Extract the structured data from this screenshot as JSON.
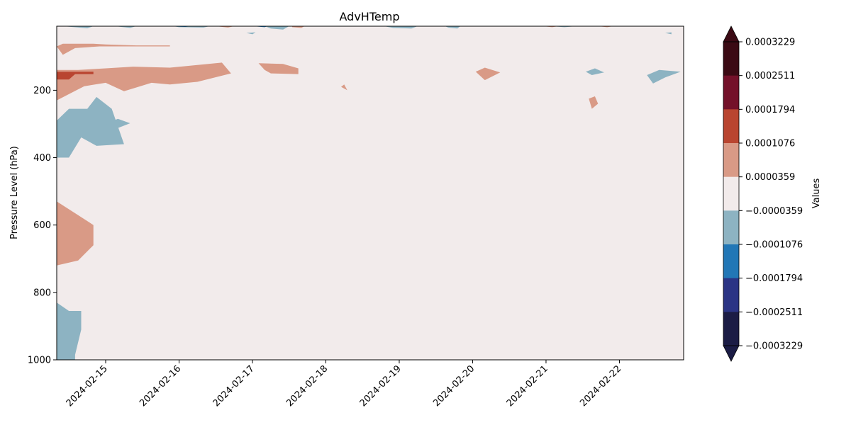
{
  "chart_data": {
    "type": "heatmap",
    "title": "AdvHTemp",
    "ylabel": "Pressure Level (hPa)",
    "xlabel": "",
    "colorbar_label": "Values",
    "x_range": [
      "2024-02-14 08:00",
      "2024-02-22 21:00"
    ],
    "y_range": [
      1000,
      10
    ],
    "y_inverted": true,
    "x_ticks": [
      "2024-02-15",
      "2024-02-16",
      "2024-02-17",
      "2024-02-18",
      "2024-02-19",
      "2024-02-20",
      "2024-02-21",
      "2024-02-22"
    ],
    "y_ticks": [
      200,
      400,
      600,
      800,
      1000
    ],
    "colorbar_ticks": [
      "0.0003229",
      "0.0002511",
      "0.0001794",
      "0.0001076",
      "0.0000359",
      "−0.0000359",
      "−0.0001076",
      "−0.0001794",
      "−0.0002511",
      "−0.0003229"
    ],
    "levels": [
      {
        "range": [
          0.0002511,
          0.0003229
        ],
        "color": "#3b0a14"
      },
      {
        "range": [
          0.0001794,
          0.0002511
        ],
        "color": "#74112a"
      },
      {
        "range": [
          0.0001076,
          0.0001794
        ],
        "color": "#b94530"
      },
      {
        "range": [
          3.59e-05,
          0.0001076
        ],
        "color": "#d99a86"
      },
      {
        "range": [
          -3.59e-05,
          3.59e-05
        ],
        "color": "#f2ebeb"
      },
      {
        "range": [
          -0.0001076,
          -3.59e-05
        ],
        "color": "#8db3c2"
      },
      {
        "range": [
          -0.0001794,
          -0.0001076
        ],
        "color": "#2277b6"
      },
      {
        "range": [
          -0.0002511,
          -0.0001794
        ],
        "color": "#2b3485"
      },
      {
        "range": [
          -0.0003229,
          -0.0002511
        ],
        "color": "#1b1c45"
      }
    ],
    "extend": "both",
    "background_color": "#f2ebeb",
    "regions": [
      {
        "name": "warm-upper-band",
        "color": "#d99a86",
        "points": [
          [
            "2024-02-14 08:00",
            230
          ],
          [
            "2024-02-14 08:00",
            140
          ],
          [
            "2024-02-14 15:00",
            140
          ],
          [
            "2024-02-15 00:00",
            135
          ],
          [
            "2024-02-15 09:00",
            130
          ],
          [
            "2024-02-15 21:00",
            133
          ],
          [
            "2024-02-16 06:00",
            125
          ],
          [
            "2024-02-16 14:00",
            118
          ],
          [
            "2024-02-16 17:00",
            150
          ],
          [
            "2024-02-16 06:00",
            175
          ],
          [
            "2024-02-15 21:00",
            183
          ],
          [
            "2024-02-15 15:00",
            178
          ],
          [
            "2024-02-15 06:00",
            203
          ],
          [
            "2024-02-15 00:00",
            178
          ],
          [
            "2024-02-14 17:00",
            188
          ]
        ]
      },
      {
        "name": "warm-core",
        "color": "#b94530",
        "points": [
          [
            "2024-02-14 08:00",
            168
          ],
          [
            "2024-02-14 08:00",
            145
          ],
          [
            "2024-02-14 20:00",
            145
          ],
          [
            "2024-02-14 20:00",
            152
          ],
          [
            "2024-02-14 14:00",
            152
          ],
          [
            "2024-02-14 12:00",
            168
          ]
        ]
      },
      {
        "name": "warm-strip-70",
        "color": "#d99a86",
        "points": [
          [
            "2024-02-14 08:00",
            70
          ],
          [
            "2024-02-14 10:00",
            62
          ],
          [
            "2024-02-14 20:00",
            62
          ],
          [
            "2024-02-15 00:00",
            64
          ],
          [
            "2024-02-15 10:00",
            67
          ],
          [
            "2024-02-15 21:00",
            67
          ],
          [
            "2024-02-15 21:00",
            70
          ],
          [
            "2024-02-14 22:00",
            70
          ],
          [
            "2024-02-14 14:00",
            75
          ],
          [
            "2024-02-14 10:00",
            95
          ]
        ]
      },
      {
        "name": "warm-blob-02-17",
        "color": "#d99a86",
        "points": [
          [
            "2024-02-17 02:00",
            120
          ],
          [
            "2024-02-17 10:00",
            122
          ],
          [
            "2024-02-17 15:00",
            135
          ],
          [
            "2024-02-17 15:00",
            152
          ],
          [
            "2024-02-17 06:00",
            150
          ],
          [
            "2024-02-17 04:00",
            140
          ]
        ]
      },
      {
        "name": "cold-upper-left",
        "color": "#8db3c2",
        "points": [
          [
            "2024-02-14 08:00",
            400
          ],
          [
            "2024-02-14 08:00",
            290
          ],
          [
            "2024-02-14 12:00",
            255
          ],
          [
            "2024-02-14 18:00",
            255
          ],
          [
            "2024-02-14 21:00",
            220
          ],
          [
            "2024-02-15 02:00",
            255
          ],
          [
            "2024-02-15 06:00",
            360
          ],
          [
            "2024-02-14 21:00",
            365
          ],
          [
            "2024-02-14 16:00",
            340
          ],
          [
            "2024-02-14 12:00",
            400
          ]
        ]
      },
      {
        "name": "cold-small-02-15",
        "color": "#8db3c2",
        "points": [
          [
            "2024-02-15 00:00",
            300
          ],
          [
            "2024-02-15 04:00",
            285
          ],
          [
            "2024-02-15 08:00",
            298
          ],
          [
            "2024-02-15 04:00",
            312
          ]
        ]
      },
      {
        "name": "warm-mid-left",
        "color": "#d99a86",
        "points": [
          [
            "2024-02-14 08:00",
            720
          ],
          [
            "2024-02-14 08:00",
            530
          ],
          [
            "2024-02-14 14:00",
            565
          ],
          [
            "2024-02-14 20:00",
            600
          ],
          [
            "2024-02-14 20:00",
            660
          ],
          [
            "2024-02-14 15:00",
            705
          ]
        ]
      },
      {
        "name": "cold-bottom-left",
        "color": "#8db3c2",
        "points": [
          [
            "2024-02-14 08:00",
            1000
          ],
          [
            "2024-02-14 08:00",
            830
          ],
          [
            "2024-02-14 12:00",
            855
          ],
          [
            "2024-02-14 16:00",
            855
          ],
          [
            "2024-02-14 16:00",
            910
          ],
          [
            "2024-02-14 14:00",
            985
          ],
          [
            "2024-02-14 14:00",
            1000
          ]
        ]
      },
      {
        "name": "warm-blob-02-20",
        "color": "#d99a86",
        "points": [
          [
            "2024-02-20 01:00",
            145
          ],
          [
            "2024-02-20 04:00",
            133
          ],
          [
            "2024-02-20 09:00",
            147
          ],
          [
            "2024-02-20 04:00",
            170
          ]
        ]
      },
      {
        "name": "cold-blob-02-21",
        "color": "#8db3c2",
        "points": [
          [
            "2024-02-21 13:00",
            145
          ],
          [
            "2024-02-21 16:00",
            135
          ],
          [
            "2024-02-21 19:00",
            147
          ],
          [
            "2024-02-21 15:00",
            155
          ]
        ]
      },
      {
        "name": "warm-streak-02-21",
        "color": "#d99a86",
        "points": [
          [
            "2024-02-21 14:00",
            225
          ],
          [
            "2024-02-21 16:00",
            218
          ],
          [
            "2024-02-21 17:00",
            240
          ],
          [
            "2024-02-21 15:00",
            255
          ]
        ]
      },
      {
        "name": "cold-blob-02-22",
        "color": "#8db3c2",
        "points": [
          [
            "2024-02-22 09:00",
            155
          ],
          [
            "2024-02-22 13:00",
            140
          ],
          [
            "2024-02-22 20:00",
            145
          ],
          [
            "2024-02-22 15:00",
            162
          ],
          [
            "2024-02-22 11:00",
            180
          ]
        ]
      },
      {
        "name": "warm-speck-02-18",
        "color": "#d99a86",
        "points": [
          [
            "2024-02-18 05:00",
            190
          ],
          [
            "2024-02-18 06:00",
            183
          ],
          [
            "2024-02-18 07:00",
            200
          ]
        ]
      },
      {
        "name": "cold-top-02-19",
        "color": "#8db3c2",
        "points": [
          [
            "2024-02-18 19:00",
            10
          ],
          [
            "2024-02-19 06:00",
            10
          ],
          [
            "2024-02-19 04:00",
            17
          ],
          [
            "2024-02-18 22:00",
            15
          ]
        ]
      },
      {
        "name": "cold-top-02-17",
        "color": "#8db3c2",
        "points": [
          [
            "2024-02-17 04:00",
            10
          ],
          [
            "2024-02-17 12:00",
            10
          ],
          [
            "2024-02-17 10:00",
            20
          ],
          [
            "2024-02-17 06:00",
            17
          ]
        ]
      },
      {
        "name": "warm-top-02-17",
        "color": "#d99a86",
        "points": [
          [
            "2024-02-17 13:00",
            10
          ],
          [
            "2024-02-17 17:00",
            10
          ],
          [
            "2024-02-17 16:00",
            15
          ],
          [
            "2024-02-17 13:00",
            13
          ]
        ]
      },
      {
        "name": "cold-top-02-16",
        "color": "#8db3c2",
        "points": [
          [
            "2024-02-15 22:00",
            10
          ],
          [
            "2024-02-16 10:00",
            10
          ],
          [
            "2024-02-16 08:00",
            14
          ],
          [
            "2024-02-16 00:00",
            13
          ]
        ]
      },
      {
        "name": "warm-top-02-16",
        "color": "#d99a86",
        "points": [
          [
            "2024-02-16 12:00",
            10
          ],
          [
            "2024-02-16 18:00",
            10
          ],
          [
            "2024-02-16 16:00",
            14
          ]
        ]
      },
      {
        "name": "cold-top-02-19b",
        "color": "#8db3c2",
        "points": [
          [
            "2024-02-19 15:00",
            10
          ],
          [
            "2024-02-19 20:00",
            10
          ],
          [
            "2024-02-19 19:00",
            17
          ],
          [
            "2024-02-19 16:00",
            14
          ]
        ]
      },
      {
        "name": "warm-top-02-21",
        "color": "#d99a86",
        "points": [
          [
            "2024-02-20 23:00",
            10
          ],
          [
            "2024-02-21 04:00",
            10
          ],
          [
            "2024-02-21 02:00",
            13
          ]
        ]
      },
      {
        "name": "warm-top-02-22",
        "color": "#d99a86",
        "points": [
          [
            "2024-02-21 17:00",
            10
          ],
          [
            "2024-02-21 22:00",
            10
          ],
          [
            "2024-02-21 20:00",
            13
          ]
        ]
      },
      {
        "name": "cold-speck-02-17",
        "color": "#8db3c2",
        "points": [
          [
            "2024-02-16 22:00",
            30
          ],
          [
            "2024-02-17 01:00",
            28
          ],
          [
            "2024-02-17 00:00",
            34
          ]
        ]
      },
      {
        "name": "cold-speck-02-22",
        "color": "#8db3c2",
        "points": [
          [
            "2024-02-22 15:00",
            30
          ],
          [
            "2024-02-22 17:00",
            28
          ],
          [
            "2024-02-22 17:00",
            34
          ]
        ]
      },
      {
        "name": "cold-top-02-14",
        "color": "#8db3c2",
        "points": [
          [
            "2024-02-14 10:00",
            10
          ],
          [
            "2024-02-14 20:00",
            10
          ],
          [
            "2024-02-14 18:00",
            16
          ]
        ]
      },
      {
        "name": "cold-top-02-15",
        "color": "#8db3c2",
        "points": [
          [
            "2024-02-15 03:00",
            10
          ],
          [
            "2024-02-15 10:00",
            10
          ],
          [
            "2024-02-15 08:00",
            15
          ]
        ]
      },
      {
        "name": "cold-speck-02-21",
        "color": "#8db3c2",
        "points": [
          [
            "2024-02-21 02:00",
            10
          ],
          [
            "2024-02-21 10:00",
            10
          ],
          [
            "2024-02-21 06:00",
            13
          ]
        ]
      }
    ],
    "dark_streaks": [
      {
        "name": "dark-top-02-16",
        "color": "#2277b6",
        "points": [
          [
            "2024-02-15 20:00",
            10
          ],
          [
            "2024-02-16 04:00",
            10
          ],
          [
            "2024-02-16 02:00",
            12
          ]
        ]
      },
      {
        "name": "dark-top-02-17",
        "color": "#2277b6",
        "points": [
          [
            "2024-02-17 00:00",
            10
          ],
          [
            "2024-02-17 05:00",
            10
          ],
          [
            "2024-02-17 04:00",
            13
          ]
        ]
      }
    ]
  }
}
